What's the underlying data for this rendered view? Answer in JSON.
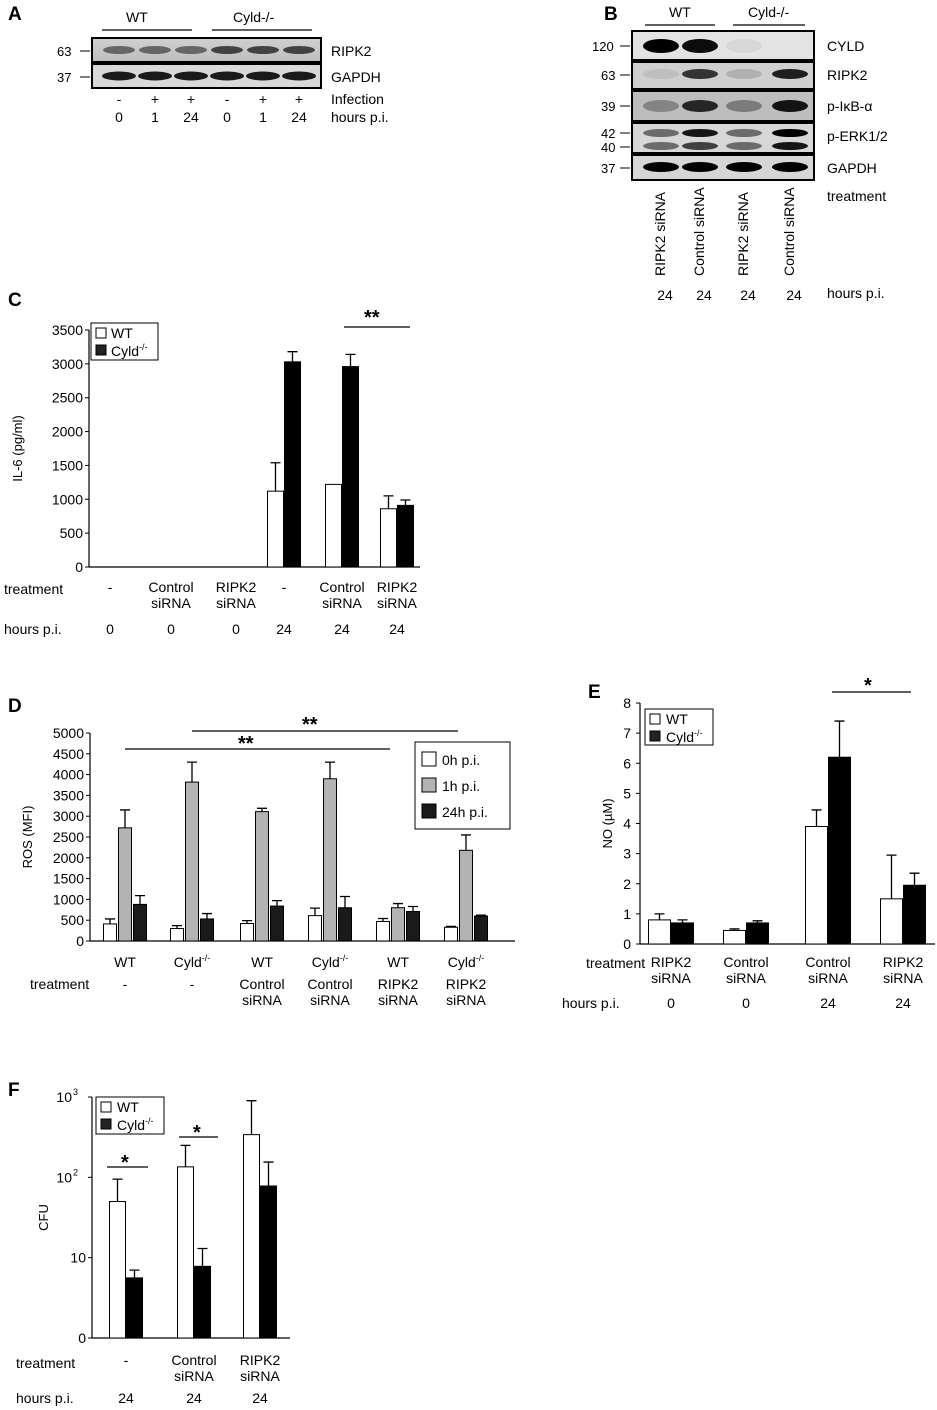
{
  "panel_a": {
    "letter": "A",
    "genotypes": [
      "WT",
      "Cyld-/-"
    ],
    "mw": [
      "63",
      "37"
    ],
    "bands": [
      "RIPK2",
      "GAPDH"
    ],
    "infection_label": "Infection",
    "infection": [
      "-",
      "+",
      "+",
      "-",
      "+",
      "+"
    ],
    "hours_label": "hours p.i.",
    "hours": [
      "0",
      "1",
      "24",
      "0",
      "1",
      "24"
    ]
  },
  "panel_b": {
    "letter": "B",
    "genotypes": [
      "WT",
      "Cyld-/-"
    ],
    "mw": [
      "120",
      "63",
      "39",
      "42",
      "40",
      "37"
    ],
    "bands": [
      "CYLD",
      "RIPK2",
      "p-IκB-α",
      "p-ERK1/2",
      "GAPDH"
    ],
    "treatment_label": "treatment",
    "treatments": [
      "RIPK2 siRNA",
      "Control siRNA",
      "RIPK2 siRNA",
      "Control siRNA"
    ],
    "hours_label": "hours p.i.",
    "hours": [
      "24",
      "24",
      "24",
      "24"
    ]
  },
  "panel_c": {
    "letter": "C",
    "significance": "**",
    "treatment_label": "treatment",
    "hours_label": "hours p.i."
  },
  "panel_d": {
    "letter": "D",
    "significance": [
      "**",
      "**"
    ],
    "treatment_label": "treatment"
  },
  "panel_e": {
    "letter": "E",
    "significance": "*",
    "treatment_label": "treatment",
    "hours_label": "hours p.i."
  },
  "panel_f": {
    "letter": "F",
    "significance": [
      "*",
      "*"
    ],
    "treatment_label": "treatment",
    "hours_label": "hours p.i."
  },
  "colors": {
    "wt": "#ffffff",
    "cyld": "#000000",
    "h0": "#ffffff",
    "h1": "#b3b3b3",
    "h24": "#1a1a1a"
  },
  "chart_data": [
    {
      "id": "C",
      "type": "bar",
      "ylabel": "IL-6 (pg/ml)",
      "ylim": [
        0,
        3500
      ],
      "yticks": [
        0,
        500,
        1000,
        1500,
        2000,
        2500,
        3000,
        3500
      ],
      "categories": [
        "-",
        "Control siRNA",
        "RIPK2 siRNA",
        "-",
        "Control siRNA",
        "RIPK2 siRNA"
      ],
      "hours": [
        "0",
        "0",
        "0",
        "24",
        "24",
        "24"
      ],
      "legend": "top-left",
      "series": [
        {
          "name": "WT",
          "values": [
            0,
            0,
            0,
            1120,
            1220,
            860
          ],
          "errors": [
            0,
            0,
            0,
            420,
            0,
            190
          ]
        },
        {
          "name": "Cyld-/-",
          "values": [
            0,
            0,
            0,
            3030,
            2960,
            910
          ],
          "errors": [
            0,
            0,
            0,
            150,
            180,
            80
          ]
        }
      ]
    },
    {
      "id": "D",
      "type": "bar",
      "ylabel": "ROS (MFI)",
      "ylim": [
        0,
        5000
      ],
      "yticks": [
        0,
        500,
        1000,
        1500,
        2000,
        2500,
        3000,
        3500,
        4000,
        4500,
        5000
      ],
      "categories": [
        "WT",
        "Cyld-/-",
        "WT",
        "Cyld-/-",
        "WT",
        "Cyld-/-"
      ],
      "treatments": [
        "-",
        "-",
        "Control siRNA",
        "Control siRNA",
        "RIPK2 siRNA",
        "RIPK2 siRNA"
      ],
      "legend": "top-right",
      "series": [
        {
          "name": "0h p.i.",
          "values": [
            410,
            300,
            420,
            610,
            470,
            330
          ],
          "errors": [
            120,
            70,
            70,
            180,
            70,
            20
          ]
        },
        {
          "name": "1h p.i.",
          "values": [
            2720,
            3820,
            3110,
            3900,
            800,
            2180
          ],
          "errors": [
            430,
            480,
            80,
            400,
            100,
            370
          ]
        },
        {
          "name": "24h p.i.",
          "values": [
            880,
            530,
            840,
            800,
            710,
            600
          ],
          "errors": [
            210,
            130,
            130,
            270,
            120,
            20
          ]
        }
      ]
    },
    {
      "id": "E",
      "type": "bar",
      "ylabel": "NO (µM)",
      "ylim": [
        0,
        8
      ],
      "yticks": [
        0,
        1,
        2,
        3,
        4,
        5,
        6,
        7,
        8
      ],
      "categories": [
        "RIPK2 siRNA",
        "Control siRNA",
        "Control siRNA",
        "RIPK2 siRNA"
      ],
      "hours": [
        "0",
        "0",
        "24",
        "24"
      ],
      "legend": "top-left",
      "series": [
        {
          "name": "WT",
          "values": [
            0.8,
            0.45,
            3.9,
            1.5
          ],
          "errors": [
            0.2,
            0.05,
            0.55,
            1.45
          ]
        },
        {
          "name": "Cyld-/-",
          "values": [
            0.7,
            0.7,
            6.2,
            1.95
          ],
          "errors": [
            0.1,
            0.07,
            1.2,
            0.4
          ]
        }
      ]
    },
    {
      "id": "F",
      "type": "bar",
      "ylabel": "CFU",
      "yscale": "log",
      "ylim": [
        1,
        1000
      ],
      "ytick_labels": [
        "0",
        "10",
        "10²",
        "10³"
      ],
      "categories": [
        "-",
        "Control siRNA",
        "RIPK2 siRNA"
      ],
      "hours": [
        "24",
        "24",
        "24"
      ],
      "legend": "top-left",
      "series": [
        {
          "name": "WT",
          "values": [
            50,
            135,
            340
          ],
          "errors_upper": [
            95,
            250,
            900
          ]
        },
        {
          "name": "Cyld-/-",
          "values": [
            5.6,
            7.8,
            78
          ],
          "errors_upper": [
            7,
            13,
            155
          ]
        }
      ]
    }
  ]
}
